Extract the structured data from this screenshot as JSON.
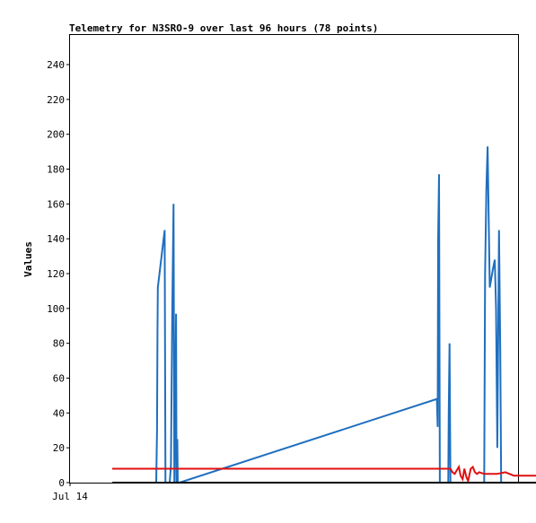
{
  "chart_data": {
    "type": "line",
    "title": "Telemetry for N3SRO-9 over last 96 hours (78 points)",
    "ylabel": "Values",
    "xlabel": "",
    "x_tick_labels": [
      {
        "label": "Jul 14",
        "hour": 0
      }
    ],
    "y_ticks": [
      0,
      20,
      40,
      60,
      80,
      100,
      120,
      140,
      160,
      180,
      200,
      220,
      240
    ],
    "xlim_hours": [
      0,
      96
    ],
    "ylim": [
      0,
      257
    ],
    "grid": false,
    "legend": "none",
    "series": [
      {
        "color": "#1f6fbf",
        "points": [
          [
            10.0,
            0
          ],
          [
            10.4,
            0
          ],
          [
            10.6,
            30
          ],
          [
            10.7,
            85
          ],
          [
            10.8,
            112
          ],
          [
            12.4,
            145
          ],
          [
            12.6,
            0
          ],
          [
            13.6,
            0
          ],
          [
            13.9,
            10
          ],
          [
            14.2,
            100
          ],
          [
            14.5,
            160
          ],
          [
            14.7,
            0
          ],
          [
            14.9,
            45
          ],
          [
            15.1,
            97
          ],
          [
            15.2,
            0
          ],
          [
            15.4,
            25
          ],
          [
            15.5,
            0
          ],
          [
            15.9,
            0
          ],
          [
            76.8,
            48
          ],
          [
            77.0,
            32
          ],
          [
            77.1,
            140
          ],
          [
            77.3,
            177
          ],
          [
            77.5,
            0
          ],
          [
            77.7,
            0
          ],
          [
            79.5,
            0
          ],
          [
            79.6,
            40
          ],
          [
            79.8,
            80
          ],
          [
            80.0,
            0
          ],
          [
            80.3,
            0
          ],
          [
            88.0,
            0
          ],
          [
            88.2,
            120
          ],
          [
            88.5,
            168
          ],
          [
            88.8,
            193
          ],
          [
            89.1,
            145
          ],
          [
            89.3,
            112
          ],
          [
            90.0,
            122
          ],
          [
            90.5,
            128
          ],
          [
            90.8,
            100
          ],
          [
            91.1,
            20
          ],
          [
            91.5,
            145
          ],
          [
            91.8,
            75
          ],
          [
            92.0,
            0
          ]
        ]
      },
      {
        "color": "#e01010",
        "points": [
          [
            0,
            8
          ],
          [
            13.0,
            8
          ],
          [
            80.0,
            8
          ],
          [
            80.5,
            6
          ],
          [
            81.0,
            5
          ],
          [
            81.5,
            7
          ],
          [
            82.0,
            9
          ],
          [
            82.4,
            4
          ],
          [
            82.9,
            2
          ],
          [
            83.3,
            8
          ],
          [
            83.8,
            3
          ],
          [
            84.2,
            1
          ],
          [
            84.8,
            8
          ],
          [
            85.3,
            9
          ],
          [
            85.8,
            6
          ],
          [
            86.3,
            5
          ],
          [
            86.8,
            6
          ],
          [
            88.0,
            5
          ],
          [
            91.0,
            5
          ],
          [
            93.0,
            6
          ],
          [
            95.0,
            4
          ],
          [
            100.0,
            4
          ],
          [
            104.0,
            4
          ]
        ]
      },
      {
        "color": "#000000",
        "points": [
          [
            0,
            0
          ],
          [
            104.0,
            0
          ]
        ]
      }
    ]
  }
}
